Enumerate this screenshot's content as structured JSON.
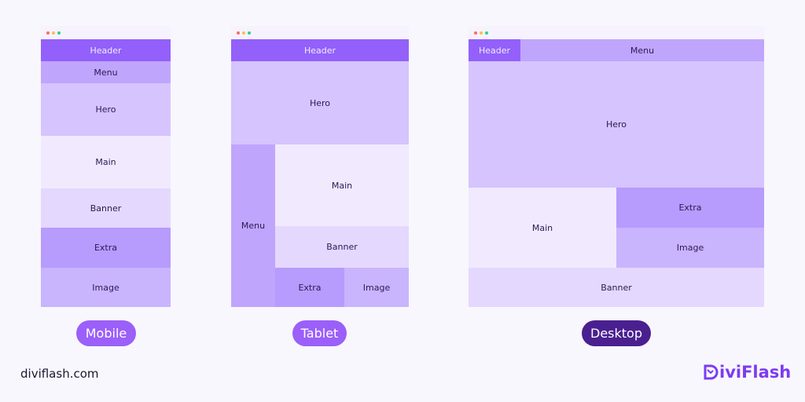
{
  "blocks": {
    "header": "Header",
    "menu": "Menu",
    "hero": "Hero",
    "main": "Main",
    "banner": "Banner",
    "extra": "Extra",
    "image": "Image"
  },
  "labels": {
    "mobile": "Mobile",
    "tablet": "Tablet",
    "desktop": "Desktop"
  },
  "colors": {
    "header": "#9360fb",
    "menu": "#c0a5fd",
    "hero": "#d5c4fe",
    "main": "#f1eafe",
    "banner": "#e4d8fe",
    "extra": "#b79bfd",
    "image": "#c9b4fe",
    "pill": "#9b5ffa",
    "pill_active": "#4a2090"
  },
  "footer": {
    "site": "diviflash.com",
    "logo": "DiviFlash",
    "logo_text": "iviFlash"
  }
}
